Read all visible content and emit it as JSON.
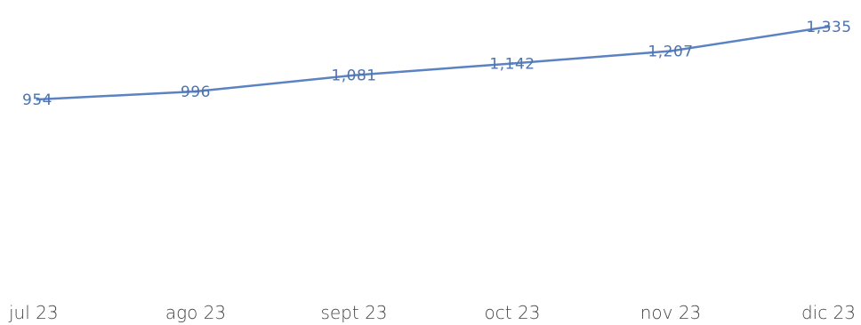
{
  "chart_data": {
    "type": "line",
    "categories": [
      "jul 23",
      "ago 23",
      "sept 23",
      "oct 23",
      "nov 23",
      "dic 23"
    ],
    "series": [
      {
        "values": [
          954,
          996,
          1081,
          1142,
          1207,
          1335
        ],
        "value_labels": [
          "954",
          "996",
          "1,081",
          "1,142",
          "1,207",
          "1,335"
        ]
      }
    ],
    "title": "",
    "xlabel": "",
    "ylabel": "",
    "grid": false,
    "legend": "none",
    "colors": {
      "line": "#5b82c2",
      "data_label": "#4e73ae",
      "tick_label": "#444444"
    }
  }
}
